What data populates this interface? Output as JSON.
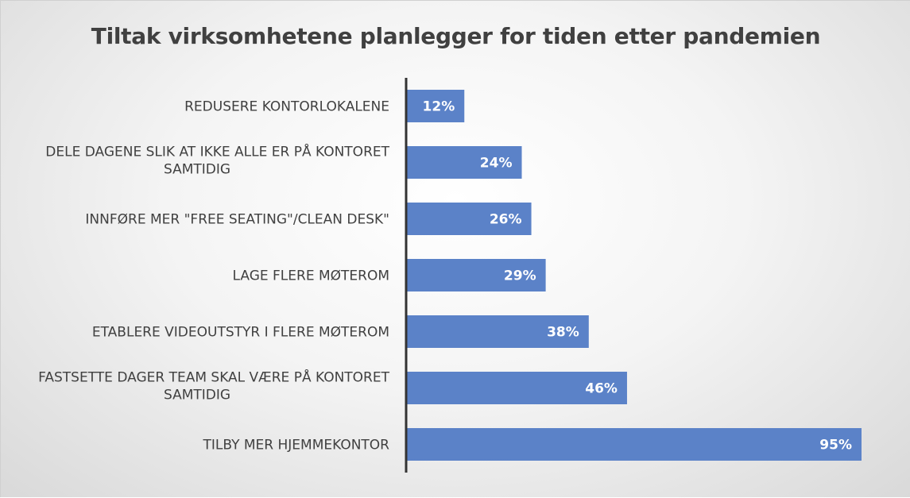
{
  "chart_data": {
    "type": "bar",
    "orientation": "horizontal",
    "title": "Tiltak virksomhetene planlegger for tiden etter pandemien",
    "categories": [
      [
        "REDUSERE KONTORLOKALENE"
      ],
      [
        "DELE DAGENE SLIK AT IKKE ALLE ER PÅ KONTORET",
        "SAMTIDIG"
      ],
      [
        "INNFØRE MER \"FREE SEATING\"/CLEAN DESK\""
      ],
      [
        "LAGE FLERE MØTEROM"
      ],
      [
        "ETABLERE VIDEOUTSTYR I FLERE MØTEROM"
      ],
      [
        "FASTSETTE DAGER TEAM SKAL VÆRE PÅ KONTORET",
        "SAMTIDIG"
      ],
      [
        "TILBY MER HJEMMEKONTOR"
      ]
    ],
    "values": [
      12,
      24,
      26,
      29,
      38,
      46,
      95
    ],
    "data_labels": [
      "12%",
      "24%",
      "26%",
      "29%",
      "38%",
      "46%",
      "95%"
    ],
    "unit": "%",
    "xlim": [
      0,
      100
    ],
    "grid": false,
    "legend": "none",
    "bar_color": "#5b82c8",
    "axis_color": "#333333"
  }
}
